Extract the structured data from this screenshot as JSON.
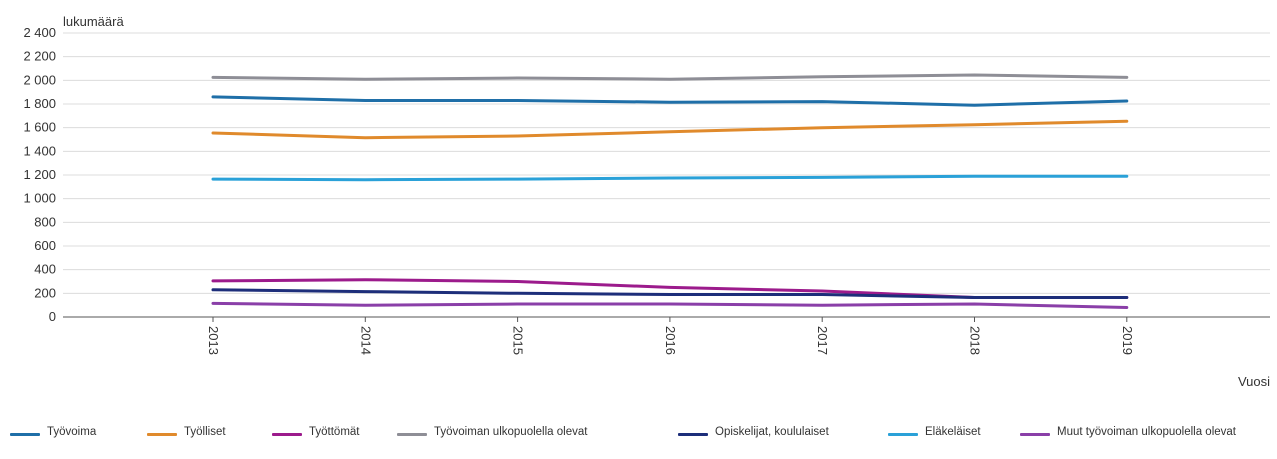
{
  "chart_data": {
    "type": "line",
    "ylabel": "lukumäärä",
    "xlabel": "Vuosi",
    "ylim": [
      0,
      2400
    ],
    "yticks": [
      0,
      200,
      400,
      600,
      800,
      1000,
      1200,
      1400,
      1600,
      1800,
      2000,
      2200,
      2400
    ],
    "ytick_labels": [
      "0",
      "200",
      "400",
      "600",
      "800",
      "1 000",
      "1 200",
      "1 400",
      "1 600",
      "1 800",
      "2 000",
      "2 200",
      "2 400"
    ],
    "categories": [
      "2013",
      "2014",
      "2015",
      "2016",
      "2017",
      "2018",
      "2019"
    ],
    "grid": true,
    "legend_position": "bottom",
    "series": [
      {
        "name": "Työvoima",
        "color": "#1f6fa8",
        "values": [
          1860,
          1830,
          1830,
          1815,
          1820,
          1790,
          1825
        ]
      },
      {
        "name": "Työlliset",
        "color": "#e08a2c",
        "values": [
          1555,
          1515,
          1530,
          1565,
          1600,
          1625,
          1655
        ]
      },
      {
        "name": "Työttömät",
        "color": "#9c1b8c",
        "values": [
          305,
          315,
          300,
          250,
          220,
          165,
          165
        ]
      },
      {
        "name": "Työvoiman ulkopuolella olevat",
        "color": "#8e8e96",
        "values": [
          2025,
          2010,
          2020,
          2010,
          2030,
          2045,
          2025
        ]
      },
      {
        "name": "Opiskelijat, koululaiset",
        "color": "#1d2e7a",
        "values": [
          230,
          215,
          200,
          190,
          190,
          165,
          165
        ]
      },
      {
        "name": "Eläkeläiset",
        "color": "#2aa1d8",
        "values": [
          1165,
          1160,
          1165,
          1175,
          1180,
          1190,
          1190
        ]
      },
      {
        "name": "Muut työvoiman ulkopuolella olevat",
        "color": "#8a3fa8",
        "values": [
          115,
          100,
          110,
          110,
          100,
          110,
          80
        ]
      }
    ]
  }
}
